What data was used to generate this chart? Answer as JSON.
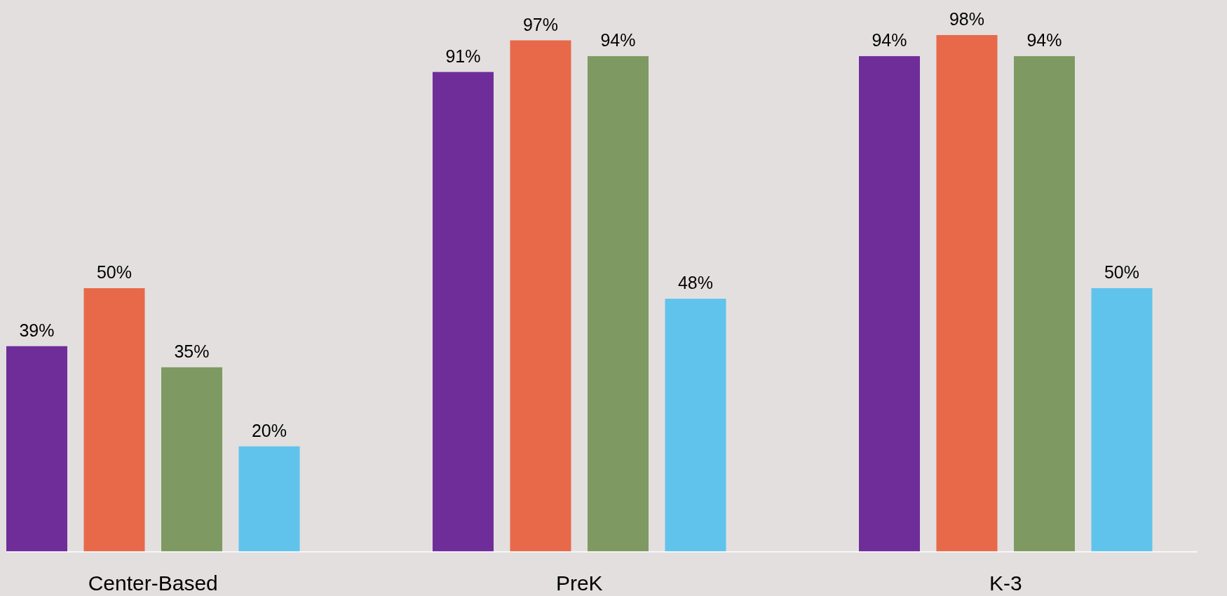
{
  "chart_data": {
    "type": "bar",
    "categories": [
      "Center-Based",
      "PreK",
      "K-3"
    ],
    "series": [
      {
        "color": "#6f2d9a",
        "values": [
          39,
          91,
          94
        ],
        "value_labels": [
          "39%",
          "91%",
          "94%"
        ]
      },
      {
        "color": "#e8694a",
        "values": [
          50,
          97,
          98
        ],
        "value_labels": [
          "50%",
          "97%",
          "98%"
        ]
      },
      {
        "color": "#7e9a62",
        "values": [
          35,
          94,
          94
        ],
        "value_labels": [
          "35%",
          "94%",
          "94%"
        ]
      },
      {
        "color": "#60c3ec",
        "values": [
          20,
          48,
          50
        ],
        "value_labels": [
          "20%",
          "48%",
          "50%"
        ]
      }
    ],
    "tick_labels": "x"
  }
}
